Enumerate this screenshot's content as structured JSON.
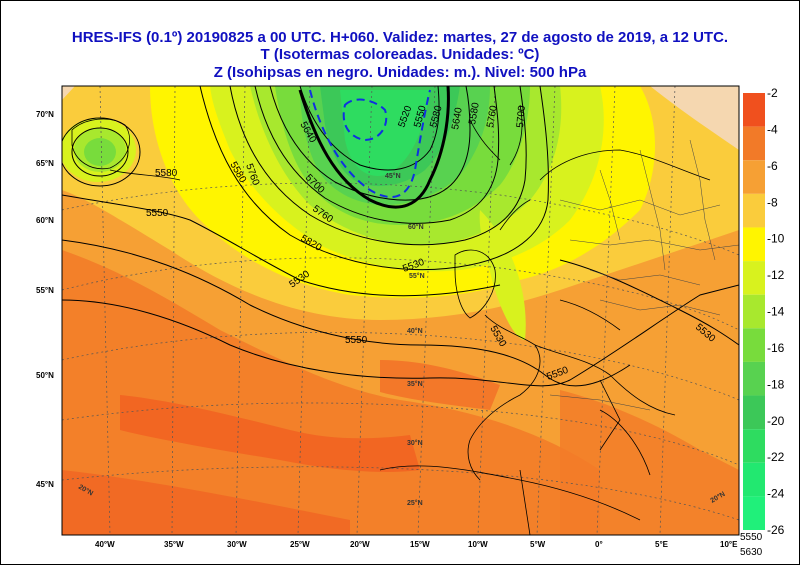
{
  "header": {
    "line1": "HRES-IFS (0.1º) 20190825 a 00 UTC.  H+060. Validez: martes, 27 de agosto de 2019,  a  12 UTC.",
    "line2": "T (Isotermas coloreadas. Unidades: ºC)",
    "line3": "Z (Isohipsas en negro. Unidades: m.).   Nivel: 500 hPa"
  },
  "axes": {
    "lon_labels": [
      "40°W",
      "35°W",
      "30°W",
      "25°W",
      "20°W",
      "15°W",
      "10°W",
      "5°W",
      "0°",
      "5°E",
      "10°E"
    ],
    "lat_labels": [
      "70°N",
      "65°N",
      "60°N",
      "55°N",
      "50°N",
      "45°N"
    ],
    "inner_lat_labels": [
      "60°N",
      "55°N",
      "45°N",
      "40°N",
      "35°N",
      "30°N",
      "25°N",
      "20°N",
      "20°N"
    ]
  },
  "colorbar": {
    "labels": [
      "-2",
      "-4",
      "-6",
      "-8",
      "-10",
      "-12",
      "-14",
      "-16",
      "-18",
      "-20",
      "-22",
      "-24",
      "-26"
    ],
    "colors": [
      "#f0501e",
      "#f27a28",
      "#f6a034",
      "#facc3c",
      "#fff500",
      "#d8f21e",
      "#a8e82e",
      "#78dc3c",
      "#58d250",
      "#3cc858",
      "#2edc60",
      "#22e870",
      "#20f07a"
    ]
  },
  "isohypse_labels": [
    "5550",
    "5580",
    "5580",
    "5760",
    "5640",
    "5700",
    "5760",
    "5820",
    "5520",
    "5550",
    "5580",
    "5640",
    "5760",
    "5580",
    "5700",
    "5530",
    "5530",
    "5550",
    "5550",
    "5530",
    "5530",
    "5550",
    "5630"
  ],
  "colors": {
    "title": "#1010c0",
    "land_beige": "#f5d7b0"
  }
}
